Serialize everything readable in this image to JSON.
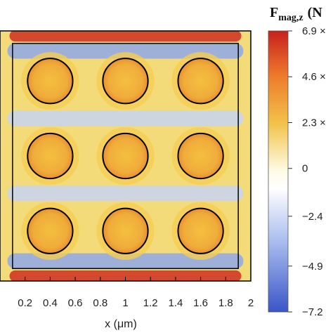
{
  "chart_data": {
    "type": "heatmap",
    "xlabel": "x (μm)",
    "x_ticks": [
      0.2,
      0.4,
      0.6,
      0.8,
      1,
      1.2,
      1.4,
      1.6,
      1.8,
      2
    ],
    "x_tick_labels": [
      "0.2",
      "0.4",
      "0.6",
      "0.8",
      "1",
      "1.2",
      "1.4",
      "1.6",
      "1.8",
      "2"
    ],
    "xlim": [
      0,
      2
    ],
    "colorbar": {
      "title": "F",
      "title_subscript": "mag,z",
      "title_suffix": "(N",
      "ticks": [
        {
          "value": 6.9,
          "label": "6.9 ×"
        },
        {
          "value": 4.6,
          "label": "4.6 ×"
        },
        {
          "value": 2.3,
          "label": "2.3 ×"
        },
        {
          "value": 0,
          "label": "0"
        },
        {
          "value": -2.4,
          "label": "−2.4"
        },
        {
          "value": -4.9,
          "label": "−4.9"
        },
        {
          "value": -7.2,
          "label": "−7.2"
        }
      ],
      "range": [
        -7.2,
        6.9
      ],
      "colormap": [
        "#3a55c8",
        "#8aa6e8",
        "#ffffff",
        "#f2d55a",
        "#ee9a36",
        "#c8201e"
      ]
    },
    "particles": [
      {
        "x": 0.4,
        "y": 0.4
      },
      {
        "x": 1.0,
        "y": 0.4
      },
      {
        "x": 1.6,
        "y": 0.4
      },
      {
        "x": 0.4,
        "y": 1.0
      },
      {
        "x": 1.0,
        "y": 1.0
      },
      {
        "x": 1.6,
        "y": 1.0
      },
      {
        "x": 0.4,
        "y": 1.6
      },
      {
        "x": 1.0,
        "y": 1.6
      },
      {
        "x": 1.6,
        "y": 1.6
      }
    ],
    "particle_radius": 0.18,
    "inner_box": {
      "x0": 0.1,
      "x1": 1.9
    },
    "bands": [
      {
        "y": 0.04,
        "value": 6.0
      },
      {
        "y": 0.16,
        "value": -4.0
      },
      {
        "y": 0.7,
        "value": -2.0
      },
      {
        "y": 1.3,
        "value": -2.0
      },
      {
        "y": 1.84,
        "value": -4.0
      },
      {
        "y": 1.96,
        "value": 6.0
      }
    ],
    "colors": {
      "particle_outline": "#000000",
      "frame": "#000000"
    }
  }
}
